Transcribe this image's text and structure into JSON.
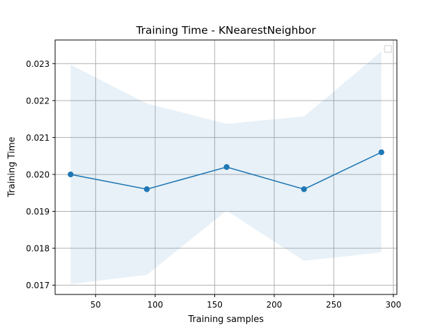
{
  "chart_data": {
    "type": "line",
    "title": "Training Time - KNearestNeighbor",
    "xlabel": "Training samples",
    "ylabel": "Training Time",
    "x": [
      29,
      93,
      160,
      225,
      290
    ],
    "series": [
      {
        "values": [
          0.02,
          0.0196,
          0.0202,
          0.0196,
          0.0206
        ],
        "band_upper": [
          0.02297,
          0.02192,
          0.02137,
          0.02157,
          0.02333
        ],
        "band_lower": [
          0.01703,
          0.01728,
          0.01902,
          0.01766,
          0.01789
        ],
        "color": "#1f77b4",
        "band_color": "#1f77b4"
      }
    ],
    "xlim": [
      16,
      303
    ],
    "ylim": [
      0.01675,
      0.02364
    ],
    "xticks": [
      50,
      100,
      150,
      200,
      250,
      300
    ],
    "xtick_labels": [
      "50",
      "100",
      "150",
      "200",
      "250",
      "300"
    ],
    "yticks": [
      0.017,
      0.018,
      0.019,
      0.02,
      0.021,
      0.022,
      0.023
    ],
    "ytick_labels": [
      "0.017",
      "0.018",
      "0.019",
      "0.020",
      "0.021",
      "0.022",
      "0.023"
    ],
    "grid": true,
    "legend": {
      "placement": "top-right",
      "entries": []
    }
  }
}
